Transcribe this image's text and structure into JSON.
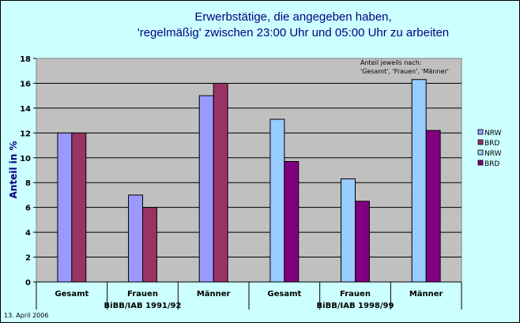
{
  "chart_data": {
    "type": "bar",
    "title_line1": "Erwerbstätige, die angegeben haben,",
    "title_line2": "'regelmäßig' zwischen 23:00 Uhr und 05:00 Uhr zu arbeiten",
    "ylabel": "Anteil in %",
    "ylim": [
      0,
      18
    ],
    "yticks": [
      "0",
      "2",
      "4",
      "6",
      "8",
      "10",
      "12",
      "14",
      "16",
      "18"
    ],
    "grid": true,
    "categories": [
      "Gesamt",
      "Frauen",
      "Männer",
      "Gesamt",
      "Frauen",
      "Männer"
    ],
    "groups": [
      "BiBB/IAB 1991/92",
      "BiBB/IAB 1998/99"
    ],
    "series": [
      {
        "name": "NRW",
        "color": "#9999ff",
        "values": [
          12,
          7,
          15,
          null,
          null,
          null
        ]
      },
      {
        "name": "BRD",
        "color": "#993366",
        "values": [
          12,
          6,
          16,
          null,
          null,
          null
        ]
      },
      {
        "name": "NRW",
        "color": "#99ccff",
        "values": [
          null,
          null,
          null,
          13.1,
          8.3,
          16.3
        ]
      },
      {
        "name": "BRD",
        "color": "#800080",
        "values": [
          null,
          null,
          null,
          9.7,
          6.5,
          12.2
        ]
      }
    ],
    "annotation_line1": "Anteil jeweils nach:",
    "annotation_line2": "'Gesamt', 'Frauen', 'Männer'",
    "legend_position": "right"
  },
  "footer": {
    "date": "13. April 2006"
  }
}
